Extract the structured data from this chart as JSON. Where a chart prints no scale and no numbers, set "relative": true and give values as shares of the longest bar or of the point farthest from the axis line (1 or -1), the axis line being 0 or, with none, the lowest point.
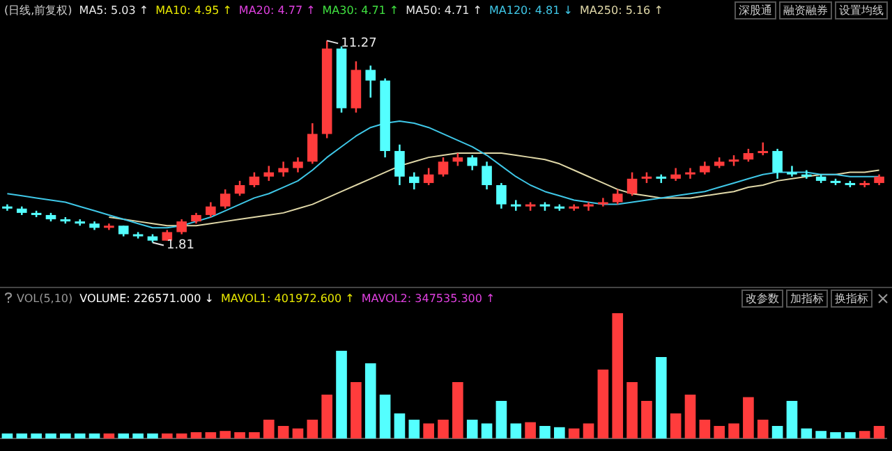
{
  "chart_data": [
    {
      "type": "candlestick",
      "title": "(日线,前复权)",
      "categories": [
        null,
        null,
        null,
        null,
        null,
        null,
        null,
        null,
        null,
        null,
        null,
        null,
        null,
        null,
        null,
        null,
        null,
        null,
        null,
        null,
        null,
        null,
        null,
        null,
        null,
        null,
        null,
        null,
        null,
        null,
        null,
        null,
        null,
        null,
        null,
        null,
        null,
        null,
        null,
        null,
        null,
        null,
        null,
        null,
        null,
        null,
        null,
        null,
        null,
        null,
        null,
        null,
        null,
        null,
        null,
        null,
        null,
        null,
        null,
        null,
        null
      ],
      "ohlc": [
        [
          3.5,
          3.6,
          3.3,
          3.4
        ],
        [
          3.4,
          3.5,
          3.1,
          3.2
        ],
        [
          3.2,
          3.3,
          3.0,
          3.1
        ],
        [
          3.1,
          3.2,
          2.8,
          2.9
        ],
        [
          2.9,
          3.0,
          2.7,
          2.8
        ],
        [
          2.8,
          2.9,
          2.6,
          2.7
        ],
        [
          2.7,
          2.8,
          2.4,
          2.5
        ],
        [
          2.5,
          2.7,
          2.4,
          2.6
        ],
        [
          2.6,
          2.6,
          2.1,
          2.2
        ],
        [
          2.2,
          2.3,
          2.0,
          2.1
        ],
        [
          2.1,
          2.2,
          1.81,
          1.9
        ],
        [
          1.9,
          2.4,
          1.9,
          2.3
        ],
        [
          2.3,
          2.9,
          2.2,
          2.8
        ],
        [
          2.8,
          3.2,
          2.7,
          3.1
        ],
        [
          3.1,
          3.7,
          3.0,
          3.5
        ],
        [
          3.5,
          4.3,
          3.4,
          4.1
        ],
        [
          4.1,
          4.7,
          4.0,
          4.5
        ],
        [
          4.5,
          5.1,
          4.4,
          4.9
        ],
        [
          4.9,
          5.4,
          4.7,
          5.1
        ],
        [
          5.1,
          5.6,
          4.9,
          5.3
        ],
        [
          5.3,
          5.8,
          5.1,
          5.6
        ],
        [
          5.6,
          7.4,
          5.5,
          6.9
        ],
        [
          6.9,
          11.27,
          6.7,
          10.9
        ],
        [
          10.9,
          11.0,
          7.9,
          8.1
        ],
        [
          8.1,
          10.3,
          7.9,
          9.9
        ],
        [
          9.9,
          10.1,
          8.6,
          9.4
        ],
        [
          9.4,
          9.5,
          5.8,
          6.1
        ],
        [
          6.1,
          6.4,
          4.5,
          4.9
        ],
        [
          4.9,
          5.1,
          4.3,
          4.6
        ],
        [
          4.6,
          5.3,
          4.5,
          5.0
        ],
        [
          5.0,
          5.8,
          4.9,
          5.6
        ],
        [
          5.6,
          6.0,
          5.4,
          5.8
        ],
        [
          5.8,
          5.9,
          5.2,
          5.4
        ],
        [
          5.4,
          5.6,
          4.3,
          4.5
        ],
        [
          4.5,
          4.6,
          3.4,
          3.6
        ],
        [
          3.6,
          3.8,
          3.3,
          3.5
        ],
        [
          3.5,
          3.7,
          3.3,
          3.6
        ],
        [
          3.6,
          3.7,
          3.3,
          3.5
        ],
        [
          3.5,
          3.6,
          3.3,
          3.4
        ],
        [
          3.4,
          3.6,
          3.3,
          3.5
        ],
        [
          3.5,
          3.7,
          3.3,
          3.6
        ],
        [
          3.6,
          3.9,
          3.5,
          3.7
        ],
        [
          3.7,
          4.3,
          3.6,
          4.1
        ],
        [
          4.1,
          5.1,
          4.0,
          4.8
        ],
        [
          4.8,
          5.1,
          4.6,
          4.9
        ],
        [
          4.9,
          5.0,
          4.6,
          4.8
        ],
        [
          4.8,
          5.3,
          4.7,
          5.0
        ],
        [
          5.0,
          5.3,
          4.8,
          5.1
        ],
        [
          5.1,
          5.6,
          5.0,
          5.4
        ],
        [
          5.4,
          5.8,
          5.3,
          5.6
        ],
        [
          5.6,
          5.9,
          5.4,
          5.7
        ],
        [
          5.7,
          6.2,
          5.6,
          6.0
        ],
        [
          6.0,
          6.5,
          5.9,
          6.1
        ],
        [
          6.1,
          6.2,
          4.8,
          5.1
        ],
        [
          5.1,
          5.4,
          4.9,
          5.0
        ],
        [
          5.0,
          5.2,
          4.8,
          4.9
        ],
        [
          4.9,
          5.0,
          4.6,
          4.7
        ],
        [
          4.7,
          4.8,
          4.5,
          4.6
        ],
        [
          4.6,
          4.7,
          4.4,
          4.5
        ],
        [
          4.5,
          4.7,
          4.4,
          4.6
        ],
        [
          4.6,
          5.0,
          4.5,
          4.9
        ]
      ],
      "colors": [
        "#54ffff",
        "#54ffff",
        "#54ffff",
        "#54ffff",
        "#54ffff",
        "#54ffff",
        "#54ffff",
        "#ff3c3c",
        "#54ffff",
        "#54ffff",
        "#54ffff",
        "#ff3c3c",
        "#ff3c3c",
        "#ff3c3c",
        "#ff3c3c",
        "#ff3c3c",
        "#ff3c3c",
        "#ff3c3c",
        "#ff3c3c",
        "#ff3c3c",
        "#ff3c3c",
        "#ff3c3c",
        "#ff3c3c",
        "#54ffff",
        "#ff3c3c",
        "#54ffff",
        "#54ffff",
        "#54ffff",
        "#54ffff",
        "#ff3c3c",
        "#ff3c3c",
        "#ff3c3c",
        "#54ffff",
        "#54ffff",
        "#54ffff",
        "#54ffff",
        "#ff3c3c",
        "#54ffff",
        "#54ffff",
        "#ff3c3c",
        "#ff3c3c",
        "#ff3c3c",
        "#ff3c3c",
        "#ff3c3c",
        "#ff3c3c",
        "#54ffff",
        "#ff3c3c",
        "#ff3c3c",
        "#ff3c3c",
        "#ff3c3c",
        "#ff3c3c",
        "#ff3c3c",
        "#ff3c3c",
        "#54ffff",
        "#54ffff",
        "#54ffff",
        "#54ffff",
        "#54ffff",
        "#54ffff",
        "#ff3c3c",
        "#ff3c3c"
      ],
      "series": [
        {
          "type": "line",
          "name": "MA120: 4.81 ↓",
          "color": "#3fc8e8",
          "values": [
            4.1,
            4.0,
            3.9,
            3.8,
            3.7,
            3.5,
            3.3,
            3.1,
            2.9,
            2.7,
            2.5,
            2.5,
            2.6,
            2.8,
            3.0,
            3.3,
            3.6,
            3.9,
            4.1,
            4.4,
            4.7,
            5.2,
            5.8,
            6.3,
            6.8,
            7.2,
            7.4,
            7.5,
            7.4,
            7.2,
            6.9,
            6.6,
            6.3,
            5.9,
            5.4,
            4.9,
            4.5,
            4.2,
            4.0,
            3.8,
            3.7,
            3.6,
            3.6,
            3.7,
            3.8,
            3.9,
            4.0,
            4.1,
            4.2,
            4.4,
            4.6,
            4.8,
            5.0,
            5.1,
            5.1,
            5.1,
            5.0,
            5.0,
            4.9,
            4.9,
            4.9
          ]
        },
        {
          "type": "line",
          "name": "MA250: 5.16 ↑",
          "color": "#e0d8a8",
          "values": [
            null,
            null,
            null,
            null,
            null,
            null,
            null,
            3.0,
            2.9,
            2.8,
            2.7,
            2.6,
            2.6,
            2.6,
            2.7,
            2.8,
            2.9,
            3.0,
            3.1,
            3.2,
            3.4,
            3.6,
            3.9,
            4.2,
            4.5,
            4.8,
            5.1,
            5.4,
            5.6,
            5.8,
            5.9,
            6.0,
            6.0,
            6.0,
            6.0,
            5.9,
            5.8,
            5.7,
            5.5,
            5.2,
            4.9,
            4.6,
            4.3,
            4.1,
            4.0,
            3.9,
            3.9,
            3.9,
            4.0,
            4.1,
            4.2,
            4.4,
            4.5,
            4.7,
            4.8,
            4.9,
            5.0,
            5.0,
            5.1,
            5.1,
            5.2
          ]
        }
      ],
      "annotations": [
        "MA5: 5.03 ↑",
        "MA10: 4.95 ↑",
        "MA20: 4.77 ↑",
        "MA30: 4.71 ↑",
        "MA50: 4.71 ↑",
        "11.27",
        "1.81",
        "深股通",
        "融资融券",
        "设置均线"
      ]
    },
    {
      "type": "bar",
      "title": "VOL(5,10)",
      "relative": true,
      "categories": [
        null,
        null,
        null,
        null,
        null,
        null,
        null,
        null,
        null,
        null,
        null,
        null,
        null,
        null,
        null,
        null,
        null,
        null,
        null,
        null,
        null,
        null,
        null,
        null,
        null,
        null,
        null,
        null,
        null,
        null,
        null,
        null,
        null,
        null,
        null,
        null,
        null,
        null,
        null,
        null,
        null,
        null,
        null,
        null,
        null,
        null,
        null,
        null,
        null,
        null,
        null,
        null,
        null,
        null,
        null,
        null,
        null,
        null,
        null,
        null,
        null
      ],
      "values": [
        0.04,
        0.04,
        0.04,
        0.04,
        0.04,
        0.04,
        0.04,
        0.04,
        0.04,
        0.04,
        0.04,
        0.04,
        0.04,
        0.05,
        0.05,
        0.06,
        0.05,
        0.05,
        0.15,
        0.1,
        0.08,
        0.15,
        0.35,
        0.7,
        0.45,
        0.6,
        0.35,
        0.2,
        0.15,
        0.12,
        0.15,
        0.45,
        0.15,
        0.12,
        0.3,
        0.12,
        0.13,
        0.1,
        0.09,
        0.08,
        0.12,
        0.55,
        1,
        0.45,
        0.3,
        0.65,
        0.2,
        0.35,
        0.15,
        0.1,
        0.12,
        0.33,
        0.15,
        0.1,
        0.3,
        0.08,
        0.06,
        0.05,
        0.05,
        0.06,
        0.1
      ],
      "colors": [
        "#54ffff",
        "#54ffff",
        "#54ffff",
        "#54ffff",
        "#54ffff",
        "#54ffff",
        "#54ffff",
        "#ff3c3c",
        "#54ffff",
        "#54ffff",
        "#54ffff",
        "#ff3c3c",
        "#ff3c3c",
        "#ff3c3c",
        "#ff3c3c",
        "#ff3c3c",
        "#ff3c3c",
        "#ff3c3c",
        "#ff3c3c",
        "#ff3c3c",
        "#ff3c3c",
        "#ff3c3c",
        "#ff3c3c",
        "#54ffff",
        "#ff3c3c",
        "#54ffff",
        "#54ffff",
        "#54ffff",
        "#54ffff",
        "#ff3c3c",
        "#ff3c3c",
        "#ff3c3c",
        "#54ffff",
        "#54ffff",
        "#54ffff",
        "#54ffff",
        "#ff3c3c",
        "#54ffff",
        "#54ffff",
        "#ff3c3c",
        "#ff3c3c",
        "#ff3c3c",
        "#ff3c3c",
        "#ff3c3c",
        "#ff3c3c",
        "#54ffff",
        "#ff3c3c",
        "#ff3c3c",
        "#ff3c3c",
        "#ff3c3c",
        "#ff3c3c",
        "#ff3c3c",
        "#ff3c3c",
        "#54ffff",
        "#54ffff",
        "#54ffff",
        "#54ffff",
        "#54ffff",
        "#54ffff",
        "#ff3c3c",
        "#ff3c3c"
      ],
      "annotations": [
        "VOLUME: 226571.000 ↓",
        "MAVOL1: 401972.600 ↑",
        "MAVOL2: 347535.300 ↑",
        "改参数",
        "加指标",
        "换指标"
      ]
    }
  ]
}
